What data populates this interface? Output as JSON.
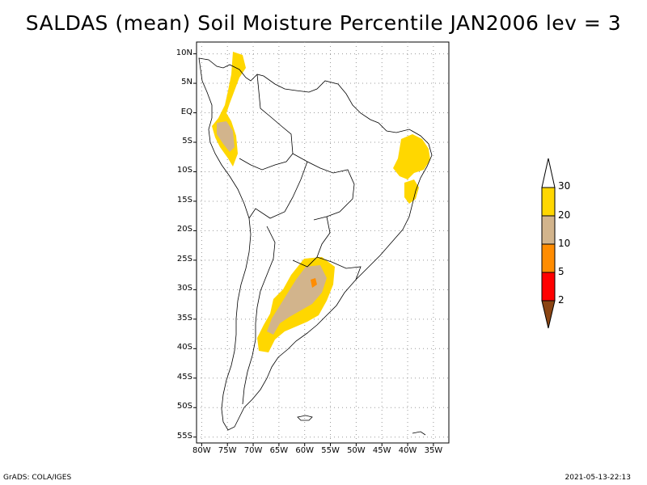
{
  "title": "SALDAS (mean) Soil Moisture Percentile JAN2006 lev = 3",
  "map": {
    "lat_ticks": [
      "10N",
      "5N",
      "EQ",
      "5S",
      "10S",
      "15S",
      "20S",
      "25S",
      "30S",
      "35S",
      "40S",
      "45S",
      "50S",
      "55S"
    ],
    "lon_ticks": [
      "80W",
      "75W",
      "70W",
      "65W",
      "60W",
      "55W",
      "50W",
      "45W",
      "40W",
      "35W"
    ],
    "lon_range": [
      -81,
      -32
    ],
    "lat_range": [
      -56,
      12
    ]
  },
  "legend": {
    "labels": [
      "2",
      "5",
      "10",
      "20",
      "30"
    ],
    "colors": [
      "#8b4513",
      "#ff0000",
      "#ff8c00",
      "#d2b48c",
      "#ffd700",
      "#ffffff"
    ]
  },
  "footer": {
    "left": "GrADS: COLA/IGES",
    "right": "2021-05-13-22:13"
  }
}
